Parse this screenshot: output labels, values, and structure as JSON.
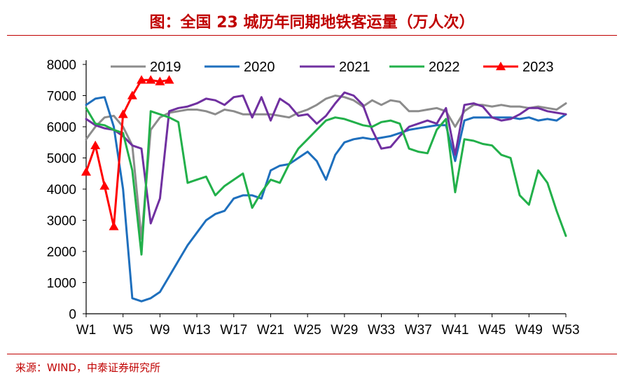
{
  "title": "图：全国 23 城历年同期地铁客运量（万人次）",
  "source": "来源：WIND，中泰证券研究所",
  "chart_data": {
    "type": "line",
    "title": "图：全国 23 城历年同期地铁客运量（万人次）",
    "xlabel": "",
    "ylabel": "",
    "ylim": [
      0,
      8000
    ],
    "yticks": [
      0,
      1000,
      2000,
      3000,
      4000,
      5000,
      6000,
      7000,
      8000
    ],
    "xlim": [
      1,
      53
    ],
    "xtick_positions": [
      1,
      5,
      9,
      13,
      17,
      21,
      25,
      29,
      33,
      37,
      41,
      45,
      49,
      53
    ],
    "xtick_labels": [
      "W1",
      "W5",
      "W9",
      "W13",
      "W17",
      "W21",
      "W25",
      "W29",
      "W33",
      "W37",
      "W41",
      "W45",
      "W49",
      "W53"
    ],
    "grid": false,
    "legend": "top",
    "series": [
      {
        "name": "2019",
        "color": "#8c8c8c",
        "marker": "none",
        "x": [
          1,
          2,
          3,
          4,
          5,
          6,
          7,
          8,
          9,
          10,
          11,
          12,
          13,
          14,
          15,
          16,
          17,
          18,
          19,
          20,
          21,
          22,
          23,
          24,
          25,
          26,
          27,
          28,
          29,
          30,
          31,
          32,
          33,
          34,
          35,
          36,
          37,
          38,
          39,
          40,
          41,
          42,
          43,
          44,
          45,
          46,
          47,
          48,
          49,
          50,
          51,
          52,
          53
        ],
        "values": [
          5600,
          6000,
          6300,
          6350,
          6000,
          5400,
          2400,
          5900,
          6300,
          6450,
          6500,
          6550,
          6550,
          6500,
          6400,
          6550,
          6500,
          6400,
          6400,
          6400,
          6400,
          6350,
          6300,
          6450,
          6550,
          6700,
          6900,
          7000,
          6950,
          6850,
          6650,
          6850,
          6700,
          6850,
          6800,
          6500,
          6500,
          6550,
          6600,
          6500,
          6000,
          6500,
          6700,
          6700,
          6650,
          6700,
          6650,
          6650,
          6600,
          6650,
          6600,
          6550,
          6750
        ]
      },
      {
        "name": "2020",
        "color": "#1e6fbd",
        "marker": "none",
        "x": [
          1,
          2,
          3,
          4,
          5,
          6,
          7,
          8,
          9,
          10,
          11,
          12,
          13,
          14,
          15,
          16,
          17,
          18,
          19,
          20,
          21,
          22,
          23,
          24,
          25,
          26,
          27,
          28,
          29,
          30,
          31,
          32,
          33,
          34,
          35,
          36,
          37,
          38,
          39,
          40,
          41,
          42,
          43,
          44,
          45,
          46,
          47,
          48,
          49,
          50,
          51,
          52,
          53
        ],
        "values": [
          6700,
          6900,
          6950,
          6000,
          4000,
          500,
          400,
          500,
          700,
          1200,
          1700,
          2200,
          2600,
          3000,
          3200,
          3300,
          3700,
          3800,
          3800,
          3700,
          4600,
          4750,
          4800,
          5000,
          5200,
          4900,
          4300,
          5100,
          5500,
          5600,
          5650,
          5600,
          5650,
          5700,
          5800,
          5900,
          5950,
          6000,
          6050,
          6050,
          4900,
          6200,
          6300,
          6300,
          6300,
          6300,
          6300,
          6250,
          6300,
          6200,
          6250,
          6200,
          6400
        ]
      },
      {
        "name": "2021",
        "color": "#7030a0",
        "marker": "none",
        "x": [
          1,
          2,
          3,
          4,
          5,
          6,
          7,
          8,
          9,
          10,
          11,
          12,
          13,
          14,
          15,
          16,
          17,
          18,
          19,
          20,
          21,
          22,
          23,
          24,
          25,
          26,
          27,
          28,
          29,
          30,
          31,
          32,
          33,
          34,
          35,
          36,
          37,
          38,
          39,
          40,
          41,
          42,
          43,
          44,
          45,
          46,
          47,
          48,
          49,
          50,
          51,
          52,
          53
        ],
        "values": [
          6250,
          6050,
          5950,
          5900,
          5700,
          5400,
          5300,
          2900,
          3700,
          6500,
          6600,
          6650,
          6750,
          6900,
          6850,
          6700,
          6950,
          7000,
          6300,
          6950,
          6200,
          6900,
          6700,
          6350,
          6400,
          6100,
          6350,
          6750,
          7100,
          7000,
          6700,
          5900,
          5300,
          5350,
          5700,
          6000,
          6100,
          6200,
          6100,
          6600,
          5100,
          6700,
          6750,
          6650,
          6300,
          6200,
          6250,
          6400,
          6600,
          6600,
          6500,
          6450,
          6400
        ]
      },
      {
        "name": "2022",
        "color": "#22b04a",
        "marker": "none",
        "x": [
          1,
          2,
          3,
          4,
          5,
          6,
          7,
          8,
          9,
          10,
          11,
          12,
          13,
          14,
          15,
          16,
          17,
          18,
          19,
          20,
          21,
          22,
          23,
          24,
          25,
          26,
          27,
          28,
          29,
          30,
          31,
          32,
          33,
          34,
          35,
          36,
          37,
          38,
          39,
          40,
          41,
          42,
          43,
          44,
          45,
          46,
          47,
          48,
          49,
          50,
          51,
          52,
          53
        ],
        "values": [
          6600,
          6100,
          6050,
          5900,
          5800,
          4600,
          1900,
          6500,
          6400,
          6300,
          6150,
          4200,
          4300,
          4400,
          3800,
          4100,
          4300,
          4500,
          3400,
          3900,
          4300,
          4200,
          4800,
          5300,
          5600,
          5900,
          6200,
          6300,
          6250,
          6150,
          6050,
          6000,
          6150,
          6200,
          6100,
          5300,
          5200,
          5150,
          5900,
          6250,
          3900,
          5600,
          5550,
          5450,
          5400,
          5100,
          5000,
          3800,
          3500,
          4600,
          4200,
          3300,
          2500
        ]
      },
      {
        "name": "2023",
        "color": "#ff0000",
        "marker": "triangle",
        "x": [
          1,
          2,
          3,
          4,
          5,
          6,
          7,
          8,
          9,
          10
        ],
        "values": [
          4550,
          5400,
          4100,
          2800,
          6400,
          7000,
          7500,
          7500,
          7450,
          7500
        ]
      }
    ]
  }
}
